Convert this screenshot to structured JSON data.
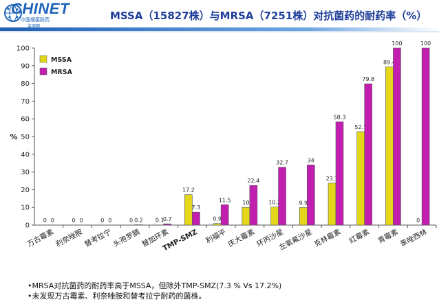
{
  "header": {
    "logo_text": "CHINET",
    "logo_subtitle": "中国细菌耐药",
    "logo_subtitle2": "监测网",
    "title": "MSSA（15827株）与MRSA（7251株）对抗菌药的耐药率（%）"
  },
  "colors": {
    "MSSA": "#e3d61b",
    "MRSA": "#c21fb0",
    "accent": "#1f3f9a"
  },
  "chart_data": {
    "type": "bar",
    "ylabel": "%",
    "xlabel": "",
    "ylim": [
      0,
      100
    ],
    "yticks": [
      0,
      10,
      20,
      30,
      40,
      50,
      60,
      70,
      80,
      90,
      100
    ],
    "grid": false,
    "legend_position": "top-left",
    "categories": [
      "万古霉素",
      "利奈唑胺",
      "替考拉宁",
      "头孢罗膦",
      "替加环素",
      "TMP-SMZ",
      "利福平",
      "庆大霉素",
      "环丙沙星",
      "左氧氟沙星",
      "克林霉素",
      "红霉素",
      "青霉素",
      "苯唑西林"
    ],
    "series": [
      {
        "name": "MSSA",
        "values": [
          0,
          0,
          0,
          0,
          0.1,
          17.2,
          0.9,
          10,
          10.2,
          9.9,
          23.7,
          52.7,
          89.4,
          0
        ],
        "labels": [
          "0",
          "0",
          "0",
          "0",
          "0.1",
          "17.2",
          "0.9",
          "10",
          "10.2",
          "9.9",
          "23.7",
          "52.7",
          "89.4",
          "0"
        ]
      },
      {
        "name": "MRSA",
        "values": [
          0,
          0,
          0,
          0.2,
          0.7,
          7.3,
          11.5,
          22.4,
          32.7,
          34,
          58.3,
          79.8,
          100,
          100
        ],
        "labels": [
          "0",
          "0",
          "0",
          "0.2",
          "0.7",
          "7.3",
          "11.5",
          "22.4",
          "32.7",
          "34",
          "58.3",
          "79.8",
          "100",
          "100"
        ]
      }
    ]
  },
  "notes": [
    "•MRSA对抗菌药的耐药率高于MSSA，但除外TMP-SMZ(7.3 % Vs 17.2%)",
    "•未发现万古霉素、利奈唑胺和替考拉宁耐药的菌株。"
  ]
}
